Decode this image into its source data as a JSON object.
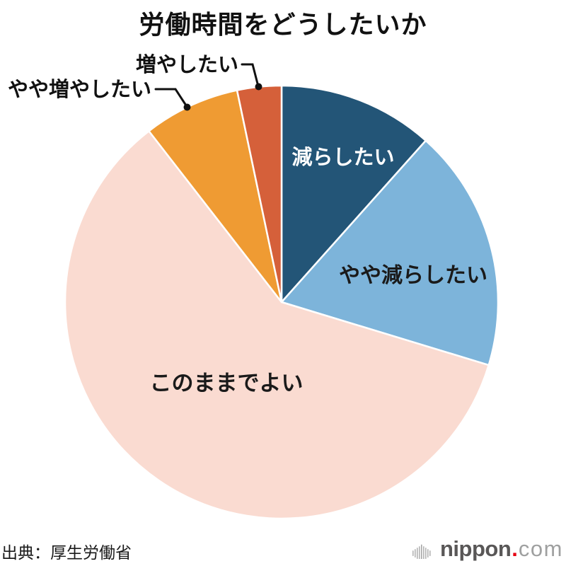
{
  "page": {
    "background": "#ffffff"
  },
  "chart_data": {
    "type": "pie",
    "title": "労働時間をどうしたいか",
    "legend_position": "labels-on-chart",
    "start_angle_deg": 0,
    "direction": "clockwise",
    "values_estimated_from_angles": true,
    "slices": [
      {
        "label": "減らしたい",
        "value": 11.6,
        "color": "#235577",
        "label_color": "#ffffff",
        "label_placement": "inside"
      },
      {
        "label": "やや減らしたい",
        "value": 18.1,
        "color": "#7db4da",
        "label_color": "#1a1a1a",
        "label_placement": "inside"
      },
      {
        "label": "このままでよい",
        "value": 59.8,
        "color": "#fadbd1",
        "label_color": "#1a1a1a",
        "label_placement": "inside"
      },
      {
        "label": "やや増やしたい",
        "value": 7.2,
        "color": "#ef9b33",
        "label_color": "#111111",
        "label_placement": "callout"
      },
      {
        "label": "増やしたい",
        "value": 3.3,
        "color": "#d5603a",
        "label_color": "#111111",
        "label_placement": "callout"
      }
    ],
    "slice_separator_color": "#ffffff"
  },
  "footer": {
    "source": "出典：厚生労働省",
    "logo": {
      "icon": "soundwave-bars-icon",
      "name": "nippon",
      "separator": ".",
      "tld": "com",
      "name_color": "#595757",
      "dot_color": "#e60012",
      "tld_color": "#9fa0a0",
      "bars_color": "#a6a6a6"
    }
  }
}
